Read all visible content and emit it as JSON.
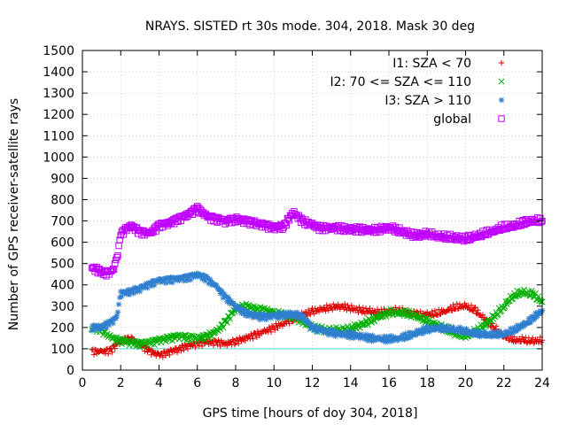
{
  "chart_data": {
    "type": "scatter",
    "title": "NRAYS. SISTED rt 30s mode. 304, 2018. Mask 30 deg",
    "xlabel": "GPS time [hours of doy 304, 2018]",
    "ylabel": "Number of GPS receiver-satellite rays",
    "xlim": [
      0,
      24
    ],
    "ylim": [
      0,
      1500
    ],
    "xticks": [
      0,
      2,
      4,
      6,
      8,
      10,
      12,
      14,
      16,
      18,
      20,
      22,
      24
    ],
    "xtick_labels": [
      "0",
      "2",
      "4",
      "6",
      "8",
      "10",
      "12",
      "14",
      "16",
      "18",
      "20",
      "22",
      "24"
    ],
    "yticks": [
      0,
      100,
      200,
      300,
      400,
      500,
      600,
      700,
      800,
      900,
      1000,
      1100,
      1200,
      1300,
      1400,
      1500
    ],
    "ytick_labels": [
      "0",
      "100",
      "200",
      "300",
      "400",
      "500",
      "600",
      "700",
      "800",
      "900",
      "1000",
      "1100",
      "1200",
      "1300",
      "1400",
      "1500"
    ],
    "grid": true,
    "legend_position": "top-right",
    "reference_line": {
      "y": 100,
      "color": "#4fd8d8"
    },
    "series": [
      {
        "name": "I1: SZA < 70",
        "marker": "+",
        "color": "#e00000",
        "x": [
          0.5,
          1.0,
          1.5,
          2.0,
          2.5,
          3.0,
          3.5,
          4.0,
          4.5,
          5.0,
          5.5,
          6.0,
          6.5,
          7.0,
          7.5,
          8.0,
          8.5,
          9.0,
          9.5,
          10.0,
          10.5,
          11.0,
          11.5,
          12.0,
          12.5,
          13.0,
          13.5,
          14.0,
          14.5,
          15.0,
          15.5,
          16.0,
          16.5,
          17.0,
          17.5,
          18.0,
          18.5,
          19.0,
          19.5,
          20.0,
          20.5,
          21.0,
          21.5,
          22.0,
          22.5,
          23.0,
          23.5,
          24.0
        ],
        "y": [
          90,
          85,
          95,
          140,
          150,
          120,
          90,
          70,
          85,
          100,
          115,
          125,
          130,
          130,
          125,
          135,
          150,
          165,
          180,
          200,
          220,
          240,
          260,
          275,
          285,
          295,
          300,
          290,
          280,
          275,
          270,
          275,
          280,
          270,
          260,
          260,
          265,
          280,
          295,
          300,
          280,
          240,
          200,
          160,
          140,
          140,
          135,
          140
        ]
      },
      {
        "name": "I2: 70 <= SZA <= 110",
        "marker": "x",
        "color": "#00b000",
        "x": [
          0.5,
          1.0,
          1.5,
          2.0,
          2.5,
          3.0,
          3.5,
          4.0,
          4.5,
          5.0,
          5.5,
          6.0,
          6.5,
          7.0,
          7.5,
          8.0,
          8.5,
          9.0,
          9.5,
          10.0,
          10.5,
          11.0,
          11.5,
          12.0,
          12.5,
          13.0,
          13.5,
          14.0,
          14.5,
          15.0,
          15.5,
          16.0,
          16.5,
          17.0,
          17.5,
          18.0,
          18.5,
          19.0,
          19.5,
          20.0,
          20.5,
          21.0,
          21.5,
          22.0,
          22.5,
          23.0,
          23.5,
          24.0
        ],
        "y": [
          200,
          190,
          150,
          140,
          130,
          125,
          130,
          140,
          150,
          160,
          155,
          150,
          160,
          180,
          230,
          290,
          300,
          290,
          280,
          270,
          260,
          250,
          230,
          200,
          190,
          185,
          190,
          195,
          210,
          230,
          250,
          270,
          270,
          265,
          250,
          230,
          210,
          190,
          170,
          160,
          180,
          210,
          250,
          300,
          350,
          365,
          355,
          320
        ]
      },
      {
        "name": "I3: SZA > 110",
        "marker": "*",
        "color": "#2f7fd0",
        "x": [
          0.5,
          1.0,
          1.5,
          1.8,
          2.0,
          2.5,
          3.0,
          3.5,
          4.0,
          4.5,
          5.0,
          5.5,
          6.0,
          6.5,
          7.0,
          7.5,
          8.0,
          8.5,
          9.0,
          9.5,
          10.0,
          10.5,
          11.0,
          11.5,
          12.0,
          12.5,
          13.0,
          13.5,
          14.0,
          14.5,
          15.0,
          15.5,
          16.0,
          16.5,
          17.0,
          17.5,
          18.0,
          18.5,
          19.0,
          19.5,
          20.0,
          20.5,
          21.0,
          21.5,
          22.0,
          22.5,
          23.0,
          23.5,
          24.0
        ],
        "y": [
          200,
          205,
          225,
          250,
          360,
          370,
          385,
          405,
          420,
          425,
          430,
          435,
          450,
          430,
          390,
          340,
          300,
          270,
          255,
          250,
          255,
          260,
          265,
          250,
          200,
          185,
          175,
          170,
          165,
          160,
          150,
          145,
          145,
          150,
          160,
          175,
          190,
          195,
          195,
          190,
          180,
          170,
          165,
          165,
          170,
          185,
          210,
          240,
          280
        ]
      },
      {
        "name": "global",
        "marker": "square",
        "color": "#c000ff",
        "x": [
          0.5,
          0.8,
          1.0,
          1.3,
          1.6,
          1.8,
          2.0,
          2.5,
          3.0,
          3.5,
          4.0,
          4.5,
          5.0,
          5.5,
          6.0,
          6.5,
          7.0,
          7.5,
          8.0,
          8.5,
          9.0,
          9.5,
          10.0,
          10.5,
          11.0,
          11.5,
          12.0,
          12.5,
          13.0,
          13.5,
          14.0,
          14.5,
          15.0,
          15.5,
          16.0,
          16.5,
          17.0,
          17.5,
          18.0,
          18.5,
          19.0,
          19.5,
          20.0,
          20.5,
          21.0,
          21.5,
          22.0,
          22.5,
          23.0,
          23.5,
          24.0
        ],
        "y": [
          480,
          470,
          460,
          455,
          470,
          520,
          640,
          680,
          650,
          640,
          680,
          690,
          710,
          730,
          760,
          720,
          710,
          700,
          710,
          700,
          690,
          680,
          670,
          675,
          740,
          700,
          680,
          665,
          670,
          665,
          660,
          660,
          655,
          660,
          670,
          655,
          640,
          630,
          640,
          630,
          625,
          620,
          615,
          625,
          640,
          655,
          670,
          675,
          690,
          700,
          700
        ]
      }
    ]
  }
}
